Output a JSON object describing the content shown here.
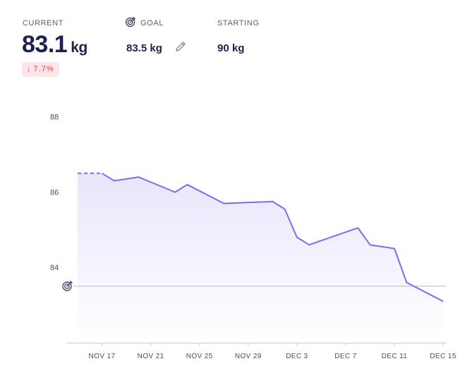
{
  "summary": {
    "current_label": "CURRENT",
    "current_value": "83.1",
    "current_unit": "kg",
    "change_arrow": "↓",
    "change_value": "7.7%",
    "goal_label": "GOAL",
    "goal_value": "83.5 kg",
    "starting_label": "STARTING",
    "starting_value": "90 kg",
    "icons": {
      "goal": "target-icon",
      "edit": "pencil-icon"
    }
  },
  "colors": {
    "line": "#7b6cf0",
    "area_top": "#e8e6fb",
    "area_bottom": "#ffffff",
    "goal_line": "#b9b9c6",
    "badge_bg": "#fde6ea",
    "badge_text": "#e23a55",
    "axis": "#c9c9d4"
  },
  "chart_data": {
    "type": "line",
    "title": "",
    "xlabel": "",
    "ylabel": "",
    "x_ticks": [
      "NOV 17",
      "NOV 21",
      "NOV 25",
      "NOV 29",
      "DEC 3",
      "DEC 7",
      "DEC 11",
      "DEC 15"
    ],
    "y_ticks": [
      84,
      86,
      88
    ],
    "xlim": [
      "2023-11-15",
      "2023-12-15"
    ],
    "ylim": [
      82,
      88.2
    ],
    "goal": 83.5,
    "projected_start": [
      {
        "x": "2023-11-15",
        "y": 86.5
      },
      {
        "x": "2023-11-17",
        "y": 86.5
      }
    ],
    "series": [
      {
        "points": [
          {
            "x": "2023-11-17",
            "y": 86.5
          },
          {
            "x": "2023-11-18",
            "y": 86.3
          },
          {
            "x": "2023-11-20",
            "y": 86.4
          },
          {
            "x": "2023-11-23",
            "y": 86.0
          },
          {
            "x": "2023-11-24",
            "y": 86.2
          },
          {
            "x": "2023-11-27",
            "y": 85.7
          },
          {
            "x": "2023-12-01",
            "y": 85.75
          },
          {
            "x": "2023-12-02",
            "y": 85.55
          },
          {
            "x": "2023-12-03",
            "y": 84.8
          },
          {
            "x": "2023-12-04",
            "y": 84.6
          },
          {
            "x": "2023-12-08",
            "y": 85.05
          },
          {
            "x": "2023-12-09",
            "y": 84.6
          },
          {
            "x": "2023-12-11",
            "y": 84.5
          },
          {
            "x": "2023-12-12",
            "y": 83.6
          },
          {
            "x": "2023-12-15",
            "y": 83.1
          }
        ]
      }
    ]
  }
}
